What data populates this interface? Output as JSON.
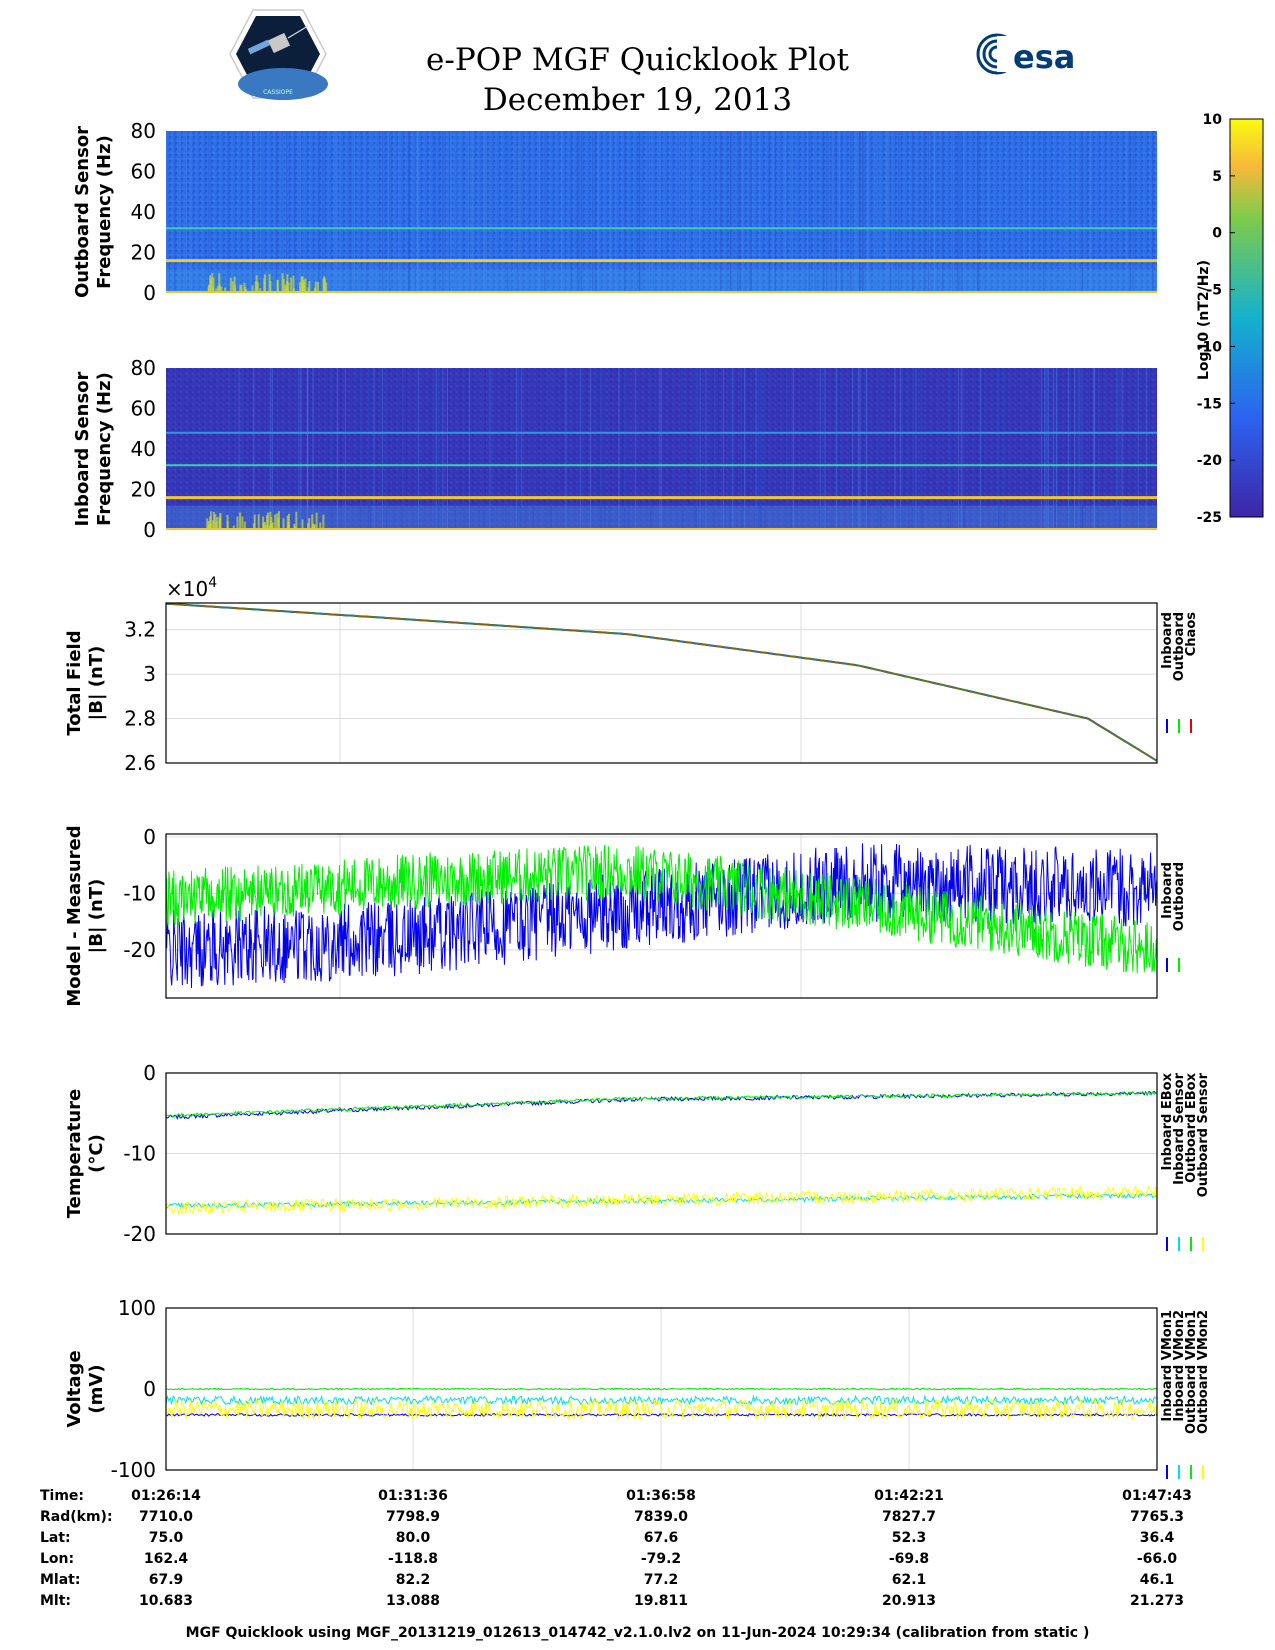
{
  "header": {
    "title": "e-POP MGF Quicklook Plot",
    "date": "December 19, 2013"
  },
  "logos": {
    "left": "cassiope-mission-logo",
    "right": "esa-logo",
    "right_text": "esa"
  },
  "colors": {
    "inboard": "#0000ee",
    "outboard": "#00ee00",
    "chaos": "#ee0000",
    "inboard_sensor": "#00e0e0",
    "outboard_sensor": "#ffff00"
  },
  "chart_data": [
    {
      "type": "heatmap",
      "id": "outboard-spectrogram",
      "ylabel": [
        "Outboard Sensor",
        "Frequency (Hz)"
      ],
      "ylim": [
        0,
        80
      ],
      "yticks": [
        0,
        20,
        40,
        60,
        80
      ],
      "lines_hz": [
        16,
        32
      ]
    },
    {
      "type": "heatmap",
      "id": "inboard-spectrogram",
      "ylabel": [
        "Inboard Sensor",
        "Frequency (Hz)"
      ],
      "ylim": [
        0,
        80
      ],
      "yticks": [
        0,
        20,
        40,
        60,
        80
      ],
      "lines_hz": [
        16,
        32,
        48
      ]
    },
    {
      "type": "colorbar",
      "id": "psd-colorbar",
      "label": "Log10 (nT2/Hz)",
      "range": [
        -25,
        10
      ],
      "ticks": [
        10,
        5,
        0,
        -5,
        -10,
        -15,
        -20,
        -25
      ]
    },
    {
      "type": "line",
      "id": "total-field",
      "ylabel": [
        "Total Field",
        "|B| (nT)"
      ],
      "exponent": "×10",
      "exponent_power": "4",
      "ylim": [
        2.6,
        3.32
      ],
      "yticks": [
        3.2,
        3,
        2.8,
        2.6
      ],
      "legend": [
        "Inboard",
        "Outboard",
        "Chaos"
      ],
      "x_minutes": [
        0,
        5,
        10,
        15,
        20,
        21.5
      ],
      "values": [
        3.317,
        3.25,
        3.18,
        3.04,
        2.8,
        2.61
      ]
    },
    {
      "type": "line",
      "id": "model-minus-measured",
      "ylabel": [
        "Model - Measured",
        "|B| (nT)"
      ],
      "ylim": [
        -28.5,
        0.5
      ],
      "yticks": [
        0,
        -10,
        -20
      ],
      "legend": [
        "Inboard",
        "Outboard"
      ],
      "series": [
        {
          "name": "Inboard",
          "x_minutes": [
            0,
            5,
            10,
            15,
            21.5
          ],
          "values": [
            -20,
            -18,
            -13,
            -8,
            -9
          ]
        },
        {
          "name": "Outboard",
          "x_minutes": [
            0,
            5,
            10,
            15,
            21.5
          ],
          "values": [
            -11,
            -8,
            -6,
            -12,
            -20
          ]
        }
      ]
    },
    {
      "type": "line",
      "id": "temperature",
      "ylabel": [
        "Temperature",
        "(°C)"
      ],
      "ylim": [
        -20,
        0
      ],
      "yticks": [
        0,
        -10,
        -20
      ],
      "legend": [
        "Inboard EBox",
        "Inboard Sensor",
        "Outboard EBox",
        "Outboard Sensor"
      ],
      "series": [
        {
          "name": "Inboard EBox",
          "x_minutes": [
            0,
            10,
            21.5
          ],
          "values": [
            -5.5,
            -3.3,
            -2.5
          ]
        },
        {
          "name": "Inboard Sensor",
          "x_minutes": [
            0,
            10,
            21.5
          ],
          "values": [
            -16.5,
            -15.9,
            -15.2
          ]
        },
        {
          "name": "Outboard EBox",
          "x_minutes": [
            0,
            10,
            21.5
          ],
          "values": [
            -5.3,
            -3.2,
            -2.5
          ]
        },
        {
          "name": "Outboard Sensor",
          "x_minutes": [
            0,
            10,
            21.5
          ],
          "values": [
            -16.8,
            -15.8,
            -14.8
          ]
        }
      ]
    },
    {
      "type": "line",
      "id": "voltage",
      "ylabel": [
        "Voltage",
        "(mV)"
      ],
      "ylim": [
        -100,
        100
      ],
      "yticks": [
        100,
        0,
        -100
      ],
      "legend": [
        "Inboard VMon1",
        "Inboard VMon2",
        "Outboard VMon1",
        "Outboard VMon2"
      ],
      "series": [
        {
          "name": "Inboard VMon1",
          "values_mean": -32
        },
        {
          "name": "Inboard VMon2",
          "values_mean": -14
        },
        {
          "name": "Outboard VMon1",
          "values_mean": 0
        },
        {
          "name": "Outboard VMon2",
          "values_mean": -25
        }
      ]
    }
  ],
  "ephemeris": {
    "labels": [
      "Time:",
      "Rad(km):",
      "Lat:",
      "Lon:",
      "Mlat:",
      "Mlt:"
    ],
    "columns": [
      [
        "01:26:14",
        "7710.0",
        "75.0",
        "162.4",
        "67.9",
        "10.683"
      ],
      [
        "01:31:36",
        "7798.9",
        "80.0",
        "-118.8",
        "82.2",
        "13.088"
      ],
      [
        "01:36:58",
        "7839.0",
        "67.6",
        "-79.2",
        "77.2",
        "19.811"
      ],
      [
        "01:42:21",
        "7827.7",
        "52.3",
        "-69.8",
        "62.1",
        "20.913"
      ],
      [
        "01:47:43",
        "7765.3",
        "36.4",
        "-66.0",
        "46.1",
        "21.273"
      ]
    ]
  },
  "footer": "MGF Quicklook using MGF_20131219_012613_014742_v2.1.0.lv2 on 11-Jun-2024 10:29:34 (calibration from static )"
}
